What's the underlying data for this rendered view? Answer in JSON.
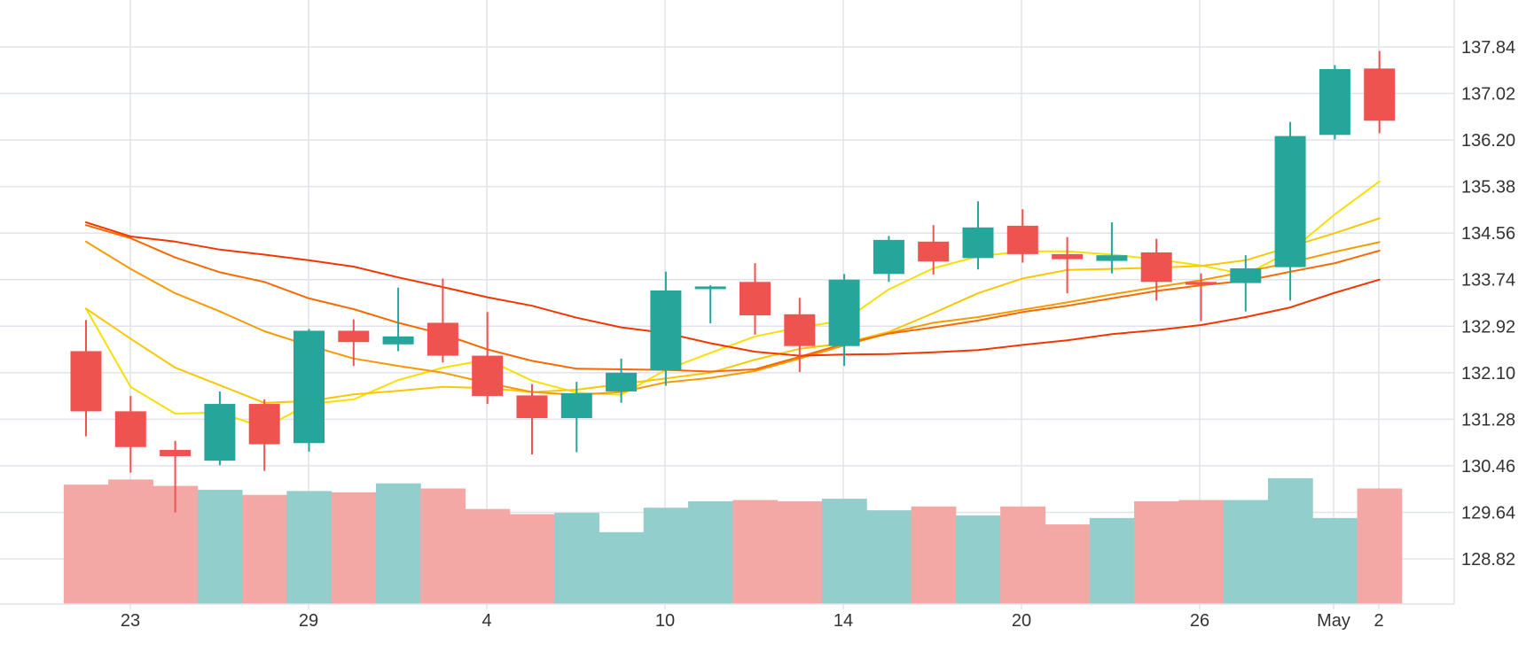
{
  "chart_data": {
    "type": "candlestick",
    "x_tick_labels": [
      "23",
      "29",
      "4",
      "10",
      "14",
      "20",
      "26",
      "May",
      "2"
    ],
    "y_tick_labels": [
      "137.84",
      "137.02",
      "136.20",
      "135.38",
      "134.56",
      "133.74",
      "132.92",
      "132.10",
      "131.28",
      "130.46",
      "129.64",
      "128.82"
    ],
    "ylim": [
      128.0,
      138.3
    ],
    "grid": true,
    "y_axis_position": "right",
    "colors": {
      "up": "#26a69a",
      "down": "#ef5350",
      "up_volume": "#92cecb",
      "down_volume": "#f4a8a6",
      "grid": "#e0e3eb",
      "axis_text": "#333333"
    },
    "candles": [
      {
        "open": 132.48,
        "high": 133.03,
        "low": 130.98,
        "close": 131.42
      },
      {
        "open": 131.42,
        "high": 131.69,
        "low": 130.34,
        "close": 130.79
      },
      {
        "open": 130.74,
        "high": 130.9,
        "low": 129.64,
        "close": 130.63
      },
      {
        "open": 130.55,
        "high": 131.77,
        "low": 130.47,
        "close": 131.55
      },
      {
        "open": 131.55,
        "high": 131.63,
        "low": 130.37,
        "close": 130.84
      },
      {
        "open": 130.86,
        "high": 132.87,
        "low": 130.71,
        "close": 132.84
      },
      {
        "open": 132.84,
        "high": 133.04,
        "low": 132.22,
        "close": 132.64
      },
      {
        "open": 132.6,
        "high": 133.6,
        "low": 132.48,
        "close": 132.74
      },
      {
        "open": 132.98,
        "high": 133.76,
        "low": 132.28,
        "close": 132.4
      },
      {
        "open": 132.4,
        "high": 133.17,
        "low": 131.55,
        "close": 131.69
      },
      {
        "open": 131.7,
        "high": 131.9,
        "low": 130.66,
        "close": 131.3
      },
      {
        "open": 131.3,
        "high": 131.94,
        "low": 130.7,
        "close": 131.74
      },
      {
        "open": 131.77,
        "high": 132.35,
        "low": 131.57,
        "close": 132.1
      },
      {
        "open": 132.14,
        "high": 133.88,
        "low": 131.87,
        "close": 133.55
      },
      {
        "open": 133.6,
        "high": 133.64,
        "low": 132.97,
        "close": 133.62
      },
      {
        "open": 133.7,
        "high": 134.03,
        "low": 132.77,
        "close": 133.11
      },
      {
        "open": 133.13,
        "high": 133.42,
        "low": 132.11,
        "close": 132.57
      },
      {
        "open": 132.57,
        "high": 133.84,
        "low": 132.22,
        "close": 133.74
      },
      {
        "open": 133.84,
        "high": 134.51,
        "low": 133.7,
        "close": 134.44
      },
      {
        "open": 134.41,
        "high": 134.7,
        "low": 133.83,
        "close": 134.06
      },
      {
        "open": 134.12,
        "high": 135.12,
        "low": 133.92,
        "close": 134.66
      },
      {
        "open": 134.69,
        "high": 134.98,
        "low": 134.04,
        "close": 134.19
      },
      {
        "open": 134.19,
        "high": 134.49,
        "low": 133.5,
        "close": 134.1
      },
      {
        "open": 134.07,
        "high": 134.75,
        "low": 133.85,
        "close": 134.17
      },
      {
        "open": 134.22,
        "high": 134.46,
        "low": 133.37,
        "close": 133.7
      },
      {
        "open": 133.7,
        "high": 133.85,
        "low": 133.01,
        "close": 133.65
      },
      {
        "open": 133.68,
        "high": 134.17,
        "low": 133.18,
        "close": 133.94
      },
      {
        "open": 133.96,
        "high": 136.52,
        "low": 133.37,
        "close": 136.27
      },
      {
        "open": 136.29,
        "high": 137.52,
        "low": 136.21,
        "close": 137.45
      },
      {
        "open": 137.46,
        "high": 137.77,
        "low": 136.32,
        "close": 136.54
      }
    ],
    "volume_relative": [
      0.93,
      0.97,
      0.92,
      0.89,
      0.85,
      0.88,
      0.87,
      0.94,
      0.9,
      0.74,
      0.7,
      0.71,
      0.56,
      0.75,
      0.8,
      0.81,
      0.8,
      0.82,
      0.73,
      0.76,
      0.69,
      0.76,
      0.62,
      0.67,
      0.8,
      0.81,
      0.81,
      0.98,
      0.67,
      0.9
    ],
    "moving_averages": [
      {
        "color": "#f7e000",
        "values": [
          133.23,
          131.85,
          131.38,
          131.4,
          131.13,
          131.55,
          131.63,
          131.97,
          132.19,
          132.33,
          131.96,
          131.75,
          131.71,
          132.15,
          132.45,
          132.74,
          132.9,
          133.02,
          133.57,
          133.94,
          134.15,
          134.24,
          134.24,
          134.18,
          134.1,
          133.99,
          133.83,
          134.24,
          134.89,
          135.47
        ]
      },
      {
        "color": "#f7c800",
        "values": [
          133.23,
          132.7,
          132.19,
          131.88,
          131.57,
          131.6,
          131.72,
          131.78,
          131.85,
          131.83,
          131.76,
          131.8,
          131.9,
          132.0,
          132.1,
          132.33,
          132.52,
          132.62,
          132.82,
          133.15,
          133.5,
          133.76,
          133.91,
          133.93,
          133.95,
          133.98,
          134.08,
          134.32,
          134.56,
          134.82
        ]
      },
      {
        "color": "#f79a00",
        "values": [
          134.41,
          133.93,
          133.5,
          133.18,
          132.83,
          132.58,
          132.35,
          132.22,
          132.1,
          131.92,
          131.76,
          131.71,
          131.76,
          131.93,
          132.01,
          132.13,
          132.35,
          132.58,
          132.8,
          132.98,
          133.08,
          133.21,
          133.34,
          133.48,
          133.61,
          133.73,
          133.88,
          134.04,
          134.23,
          134.4
        ]
      },
      {
        "color": "#f76a00",
        "values": [
          134.7,
          134.47,
          134.13,
          133.87,
          133.7,
          133.41,
          133.22,
          132.98,
          132.78,
          132.51,
          132.31,
          132.17,
          132.16,
          132.15,
          132.12,
          132.16,
          132.38,
          132.61,
          132.79,
          132.9,
          133.02,
          133.17,
          133.28,
          133.41,
          133.54,
          133.64,
          133.72,
          133.88,
          134.03,
          134.25
        ]
      },
      {
        "color": "#f53500",
        "values": [
          134.75,
          134.5,
          134.41,
          134.27,
          134.18,
          134.08,
          133.97,
          133.78,
          133.61,
          133.43,
          133.28,
          133.07,
          132.9,
          132.8,
          132.62,
          132.47,
          132.4,
          132.42,
          132.43,
          132.46,
          132.5,
          132.59,
          132.67,
          132.78,
          132.85,
          132.94,
          133.08,
          133.25,
          133.51,
          133.74
        ]
      }
    ]
  }
}
